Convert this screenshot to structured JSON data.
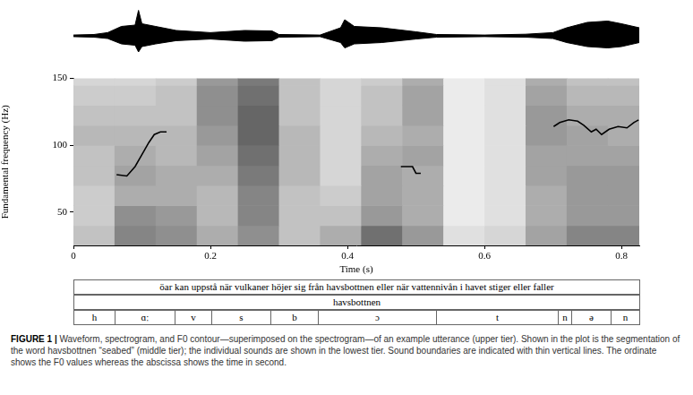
{
  "chart_data": {
    "type": "line",
    "x_label": "Time (s)",
    "y_label": "Fundamental frequency (Hz)",
    "xlim": [
      0,
      0.826
    ],
    "xticks": [
      0,
      0.2,
      0.4,
      0.6,
      0.8
    ],
    "ylim": [
      25,
      150
    ],
    "yticks": [
      50,
      100,
      150
    ],
    "grid": false,
    "series": [
      {
        "color": "#000000",
        "x": [
          0.063,
          0.078,
          0.09,
          0.1,
          0.11,
          0.118,
          0.127,
          0.136
        ],
        "values": [
          78,
          77,
          84,
          93,
          102,
          108,
          110,
          110
        ]
      },
      {
        "color": "#000000",
        "x": [
          0.478,
          0.495,
          0.5,
          0.507
        ],
        "values": [
          84,
          84,
          79,
          79
        ]
      },
      {
        "color": "#000000",
        "x": [
          0.701,
          0.71,
          0.723,
          0.736,
          0.745,
          0.756,
          0.763,
          0.771,
          0.782,
          0.795,
          0.808,
          0.818,
          0.825
        ],
        "values": [
          114,
          117,
          119,
          118,
          115,
          110,
          112,
          108,
          112,
          114,
          113,
          117,
          119
        ]
      }
    ],
    "spectrogram": {
      "time_edges": [
        0,
        0.06,
        0.12,
        0.18,
        0.24,
        0.3,
        0.36,
        0.42,
        0.48,
        0.54,
        0.6,
        0.66,
        0.72,
        0.78,
        0.84
      ],
      "freq_edges": [
        25,
        40,
        55,
        70,
        85,
        100,
        115,
        130,
        145,
        160
      ],
      "intensity": [
        [
          0.3,
          0.6,
          0.55,
          0.4,
          0.55,
          0.3,
          0.4,
          0.7,
          0.5,
          0.15,
          0.2,
          0.45,
          0.6,
          0.6
        ],
        [
          0.25,
          0.55,
          0.5,
          0.35,
          0.6,
          0.3,
          0.3,
          0.5,
          0.4,
          0.1,
          0.15,
          0.4,
          0.5,
          0.5
        ],
        [
          0.25,
          0.4,
          0.4,
          0.35,
          0.6,
          0.3,
          0.25,
          0.45,
          0.4,
          0.1,
          0.15,
          0.4,
          0.5,
          0.5
        ],
        [
          0.3,
          0.45,
          0.4,
          0.4,
          0.65,
          0.35,
          0.2,
          0.45,
          0.4,
          0.1,
          0.15,
          0.45,
          0.5,
          0.5
        ],
        [
          0.3,
          0.4,
          0.35,
          0.45,
          0.7,
          0.35,
          0.2,
          0.4,
          0.45,
          0.1,
          0.15,
          0.45,
          0.45,
          0.45
        ],
        [
          0.35,
          0.35,
          0.35,
          0.5,
          0.75,
          0.35,
          0.2,
          0.35,
          0.4,
          0.1,
          0.15,
          0.5,
          0.45,
          0.4
        ],
        [
          0.3,
          0.3,
          0.3,
          0.55,
          0.75,
          0.3,
          0.2,
          0.3,
          0.45,
          0.1,
          0.15,
          0.5,
          0.4,
          0.4
        ],
        [
          0.25,
          0.25,
          0.3,
          0.55,
          0.7,
          0.3,
          0.2,
          0.3,
          0.45,
          0.1,
          0.15,
          0.45,
          0.35,
          0.35
        ],
        [
          0.2,
          0.2,
          0.25,
          0.5,
          0.65,
          0.3,
          0.2,
          0.25,
          0.4,
          0.1,
          0.15,
          0.4,
          0.3,
          0.3
        ]
      ]
    },
    "waveform": {
      "color": "#000000",
      "ylim": [
        -1,
        1
      ],
      "x": [
        0,
        0.03,
        0.05,
        0.07,
        0.09,
        0.095,
        0.1,
        0.12,
        0.15,
        0.2,
        0.25,
        0.29,
        0.3,
        0.36,
        0.39,
        0.396,
        0.41,
        0.45,
        0.5,
        0.53,
        0.6,
        0.66,
        0.7,
        0.72,
        0.75,
        0.78,
        0.8,
        0.826
      ],
      "max": [
        0.03,
        0.05,
        0.12,
        0.35,
        0.4,
        0.95,
        0.45,
        0.35,
        0.2,
        0.12,
        0.2,
        0.18,
        0.05,
        0.03,
        0.3,
        0.6,
        0.35,
        0.3,
        0.15,
        0.05,
        0.03,
        0.06,
        0.12,
        0.3,
        0.5,
        0.55,
        0.45,
        0.3
      ],
      "min": [
        -0.03,
        -0.05,
        -0.1,
        -0.3,
        -0.35,
        -0.6,
        -0.4,
        -0.3,
        -0.18,
        -0.12,
        -0.2,
        -0.18,
        -0.05,
        -0.03,
        -0.25,
        -0.45,
        -0.3,
        -0.25,
        -0.12,
        -0.05,
        -0.03,
        -0.05,
        -0.1,
        -0.25,
        -0.4,
        -0.45,
        -0.4,
        -0.25
      ]
    }
  },
  "tiers": [
    {
      "labels": [
        "öar kan uppstå när vulkaner höjer sig från havsbottnen eller när vattennivån i havet stiger eller faller"
      ],
      "boundaries": [
        0,
        0.826
      ]
    },
    {
      "labels": [
        "havsbottnen"
      ],
      "boundaries": [
        0,
        0.826
      ]
    },
    {
      "labels": [
        "h",
        "ɑː",
        "v",
        "s",
        "b",
        "ɔ",
        "t",
        "n",
        "ə",
        "n"
      ],
      "boundaries": [
        0,
        0.06,
        0.148,
        0.201,
        0.288,
        0.357,
        0.529,
        0.707,
        0.727,
        0.784,
        0.826
      ]
    }
  ],
  "caption": {
    "label": "FIGURE 1 |",
    "text": "Waveform, spectrogram, and F0 contour—superimposed on the spectrogram—of an example utterance (upper tier). Shown in the plot is the segmentation of the word havsbottnen “seabed” (middle tier); the individual sounds are shown in the lowest tier. Sound boundaries are indicated with thin vertical lines. The ordinate shows the F0 values whereas the abscissa shows the time in second."
  }
}
